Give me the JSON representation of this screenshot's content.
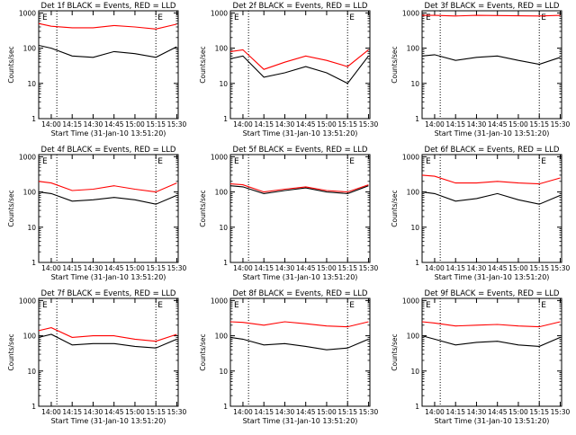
{
  "figure": {
    "ylabel": "Counts/sec",
    "xlabel": "Start Time (31-Jan-10 13:51:20)",
    "xticks": [
      "14:00",
      "14:15",
      "14:30",
      "14:45",
      "15:00",
      "15:15",
      "15:30"
    ],
    "yticks": [
      "1",
      "10",
      "100",
      "1000"
    ],
    "marker_label": "E",
    "colors": {
      "events": "#000000",
      "lld": "#ff0000"
    }
  },
  "chart_data": [
    {
      "type": "line",
      "title": "Det 1f BLACK = Events, RED = LLD",
      "marker_time": "14:04",
      "marker_time_2": "15:15",
      "series": [
        {
          "color": "#000000",
          "time": [
            "13:51",
            "14:00",
            "14:15",
            "14:30",
            "14:45",
            "15:00",
            "15:15",
            "15:30"
          ],
          "values": [
            120,
            100,
            60,
            55,
            80,
            70,
            55,
            110
          ]
        },
        {
          "color": "#ff0000",
          "time": [
            "13:51",
            "14:00",
            "14:15",
            "14:30",
            "14:45",
            "15:00",
            "15:15",
            "15:30"
          ],
          "values": [
            500,
            420,
            380,
            380,
            440,
            400,
            350,
            480
          ]
        }
      ]
    },
    {
      "type": "line",
      "title": "Det 2f BLACK = Events, RED = LLD",
      "marker_time": "14:04",
      "marker_time_2": "15:15",
      "series": [
        {
          "color": "#000000",
          "time": [
            "13:51",
            "14:00",
            "14:15",
            "14:30",
            "14:45",
            "15:00",
            "15:15",
            "15:30"
          ],
          "values": [
            50,
            60,
            15,
            20,
            30,
            20,
            10,
            60
          ]
        },
        {
          "color": "#ff0000",
          "time": [
            "13:51",
            "14:00",
            "14:15",
            "14:30",
            "14:45",
            "15:00",
            "15:15",
            "15:30"
          ],
          "values": [
            80,
            90,
            25,
            40,
            60,
            45,
            30,
            90
          ]
        }
      ]
    },
    {
      "type": "line",
      "title": "Det 3f BLACK = Events, RED = LLD",
      "marker_time": "14:04",
      "marker_time_2": "15:15",
      "series": [
        {
          "color": "#000000",
          "time": [
            "13:51",
            "14:00",
            "14:15",
            "14:30",
            "14:45",
            "15:00",
            "15:15",
            "15:30"
          ],
          "values": [
            60,
            65,
            45,
            55,
            60,
            45,
            35,
            55
          ]
        },
        {
          "color": "#ff0000",
          "time": [
            "13:51",
            "14:00",
            "14:15",
            "14:30",
            "14:45",
            "15:00",
            "15:15",
            "15:30"
          ],
          "values": [
            850,
            850,
            820,
            850,
            840,
            830,
            820,
            850
          ]
        }
      ]
    },
    {
      "type": "line",
      "title": "Det 4f BLACK = Events, RED = LLD",
      "marker_time": "14:04",
      "marker_time_2": "15:15",
      "series": [
        {
          "color": "#000000",
          "time": [
            "13:51",
            "14:00",
            "14:15",
            "14:30",
            "14:45",
            "15:00",
            "15:15",
            "15:30"
          ],
          "values": [
            100,
            90,
            55,
            60,
            70,
            60,
            45,
            80
          ]
        },
        {
          "color": "#ff0000",
          "time": [
            "13:51",
            "14:00",
            "14:15",
            "14:30",
            "14:45",
            "15:00",
            "15:15",
            "15:30"
          ],
          "values": [
            200,
            180,
            110,
            120,
            150,
            120,
            100,
            180
          ]
        }
      ]
    },
    {
      "type": "line",
      "title": "Det 5f BLACK = Events, RED = LLD",
      "marker_time": "14:04",
      "marker_time_2": "15:15",
      "series": [
        {
          "color": "#000000",
          "time": [
            "13:51",
            "14:00",
            "14:15",
            "14:30",
            "14:45",
            "15:00",
            "15:15",
            "15:30"
          ],
          "values": [
            150,
            140,
            90,
            110,
            130,
            100,
            90,
            150
          ]
        },
        {
          "color": "#ff0000",
          "time": [
            "13:51",
            "14:00",
            "14:15",
            "14:30",
            "14:45",
            "15:00",
            "15:15",
            "15:30"
          ],
          "values": [
            170,
            160,
            100,
            120,
            140,
            110,
            100,
            160
          ]
        }
      ]
    },
    {
      "type": "line",
      "title": "Det 6f BLACK = Events, RED = LLD",
      "marker_time": "14:04",
      "marker_time_2": "15:15",
      "series": [
        {
          "color": "#000000",
          "time": [
            "13:51",
            "14:00",
            "14:15",
            "14:30",
            "14:45",
            "15:00",
            "15:15",
            "15:30"
          ],
          "values": [
            100,
            90,
            55,
            65,
            90,
            60,
            45,
            80
          ]
        },
        {
          "color": "#ff0000",
          "time": [
            "13:51",
            "14:00",
            "14:15",
            "14:30",
            "14:45",
            "15:00",
            "15:15",
            "15:30"
          ],
          "values": [
            300,
            280,
            180,
            180,
            200,
            180,
            170,
            250
          ]
        }
      ]
    },
    {
      "type": "line",
      "title": "Det 7f BLACK = Events, RED = LLD",
      "marker_time": "14:04",
      "marker_time_2": "15:15",
      "series": [
        {
          "color": "#000000",
          "time": [
            "13:51",
            "14:00",
            "14:15",
            "14:30",
            "14:45",
            "15:00",
            "15:15",
            "15:30"
          ],
          "values": [
            90,
            110,
            55,
            60,
            60,
            50,
            45,
            80
          ]
        },
        {
          "color": "#ff0000",
          "time": [
            "13:51",
            "14:00",
            "14:15",
            "14:30",
            "14:45",
            "15:00",
            "15:15",
            "15:30"
          ],
          "values": [
            140,
            170,
            90,
            100,
            100,
            80,
            70,
            110
          ]
        }
      ]
    },
    {
      "type": "line",
      "title": "Det 8f BLACK = Events, RED = LLD",
      "marker_time": "14:04",
      "marker_time_2": "15:15",
      "series": [
        {
          "color": "#000000",
          "time": [
            "13:51",
            "14:00",
            "14:15",
            "14:30",
            "14:45",
            "15:00",
            "15:15",
            "15:30"
          ],
          "values": [
            90,
            80,
            55,
            60,
            50,
            40,
            45,
            80
          ]
        },
        {
          "color": "#ff0000",
          "time": [
            "13:51",
            "14:00",
            "14:15",
            "14:30",
            "14:45",
            "15:00",
            "15:15",
            "15:30"
          ],
          "values": [
            250,
            240,
            200,
            250,
            220,
            190,
            180,
            250
          ]
        }
      ]
    },
    {
      "type": "line",
      "title": "Det 9f BLACK = Events, RED = LLD",
      "marker_time": "14:04",
      "marker_time_2": "15:15",
      "series": [
        {
          "color": "#000000",
          "time": [
            "13:51",
            "14:00",
            "14:15",
            "14:30",
            "14:45",
            "15:00",
            "15:15",
            "15:30"
          ],
          "values": [
            100,
            80,
            55,
            65,
            70,
            55,
            50,
            90
          ]
        },
        {
          "color": "#ff0000",
          "time": [
            "13:51",
            "14:00",
            "14:15",
            "14:30",
            "14:45",
            "15:00",
            "15:15",
            "15:30"
          ],
          "values": [
            250,
            230,
            190,
            200,
            210,
            190,
            180,
            250
          ]
        }
      ]
    }
  ]
}
